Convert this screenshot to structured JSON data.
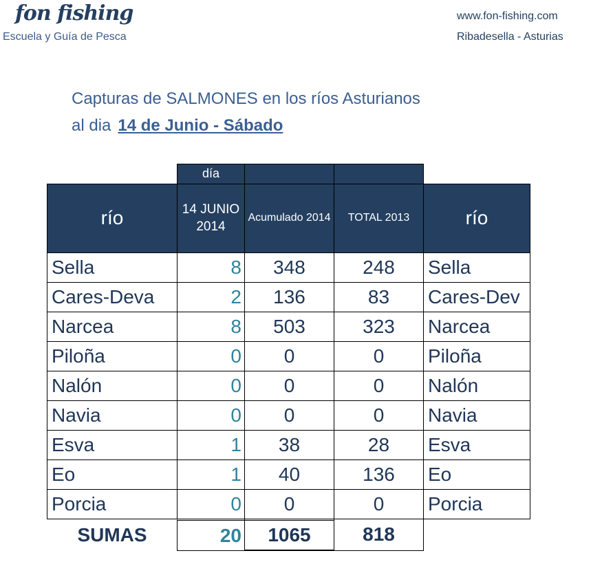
{
  "header": {
    "logo": "fon fishing",
    "tagline": "Escuela y Guía de Pesca",
    "website": "www.fon-fishing.com",
    "location": "Ribadesella - Asturias"
  },
  "title": {
    "line1": "Capturas de SALMONES en los ríos Asturianos",
    "prefix": "al dia",
    "date": "14 de Junio - Sábado"
  },
  "table": {
    "top_label": "día",
    "columns": [
      "río",
      "14 JUNIO 2014",
      "Acumulado 2014",
      "TOTAL 2013",
      "río"
    ],
    "rows": [
      {
        "rio": "Sella",
        "dia": "8",
        "acum": "348",
        "total": "248",
        "rio2": "Sella"
      },
      {
        "rio": "Cares-Deva",
        "dia": "2",
        "acum": "136",
        "total": "83",
        "rio2": "Cares-Dev"
      },
      {
        "rio": "Narcea",
        "dia": "8",
        "acum": "503",
        "total": "323",
        "rio2": "Narcea"
      },
      {
        "rio": "Piloña",
        "dia": "0",
        "acum": "0",
        "total": "0",
        "rio2": "Piloña"
      },
      {
        "rio": "Nalón",
        "dia": "0",
        "acum": "0",
        "total": "0",
        "rio2": "Nalón"
      },
      {
        "rio": "Navia",
        "dia": "0",
        "acum": "0",
        "total": "0",
        "rio2": "Navia"
      },
      {
        "rio": "Esva",
        "dia": "1",
        "acum": "38",
        "total": "28",
        "rio2": "Esva"
      },
      {
        "rio": "Eo",
        "dia": "1",
        "acum": "40",
        "total": "136",
        "rio2": "Eo"
      },
      {
        "rio": "Porcia",
        "dia": "0",
        "acum": "0",
        "total": "0",
        "rio2": "Porcia"
      }
    ],
    "totals": {
      "label": "SUMAS",
      "dia": "20",
      "acum": "1065",
      "total": "818"
    }
  },
  "colors": {
    "header_bg": "#243f60",
    "text": "#1f3657",
    "day_values": "#31849b"
  }
}
